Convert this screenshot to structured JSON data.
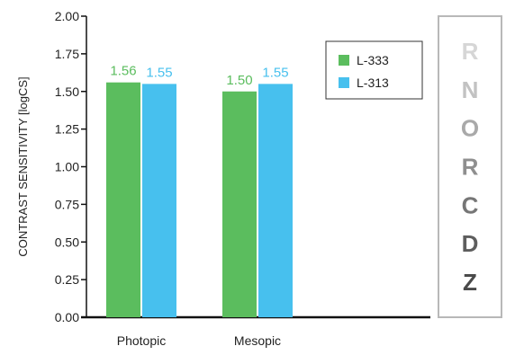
{
  "chart_data": {
    "type": "bar",
    "categories": [
      "Photopic",
      "Mesopic"
    ],
    "series": [
      {
        "name": "L-333",
        "values": [
          1.56,
          1.5
        ],
        "labels": [
          "1.56",
          "1.50"
        ],
        "color": "#5bbd5e"
      },
      {
        "name": "L-313",
        "values": [
          1.55,
          1.55
        ],
        "labels": [
          "1.55",
          "1.55"
        ],
        "color": "#47c0ee"
      }
    ],
    "title": "",
    "xlabel": "",
    "ylabel": "CONTRAST SENSITIVITY [logCS]",
    "ylim": [
      0,
      2.0
    ],
    "yticks": [
      0.0,
      0.25,
      0.5,
      0.75,
      1.0,
      1.25,
      1.5,
      1.75,
      2.0
    ],
    "yticklabels": [
      "0.00",
      "0.25",
      "0.50",
      "0.75",
      "1.00",
      "1.25",
      "1.50",
      "1.75",
      "2.00"
    ],
    "grid": false,
    "legend_position": "top-right"
  },
  "letter_chart": {
    "letters": [
      {
        "char": "R",
        "color": "#d6d6d6"
      },
      {
        "char": "N",
        "color": "#c2c2c2"
      },
      {
        "char": "O",
        "color": "#a9a9a9"
      },
      {
        "char": "R",
        "color": "#8f8f8f"
      },
      {
        "char": "C",
        "color": "#767676"
      },
      {
        "char": "D",
        "color": "#5e5e5e"
      },
      {
        "char": "Z",
        "color": "#4a4a4a"
      }
    ],
    "border_color": "#b8b8b8"
  }
}
